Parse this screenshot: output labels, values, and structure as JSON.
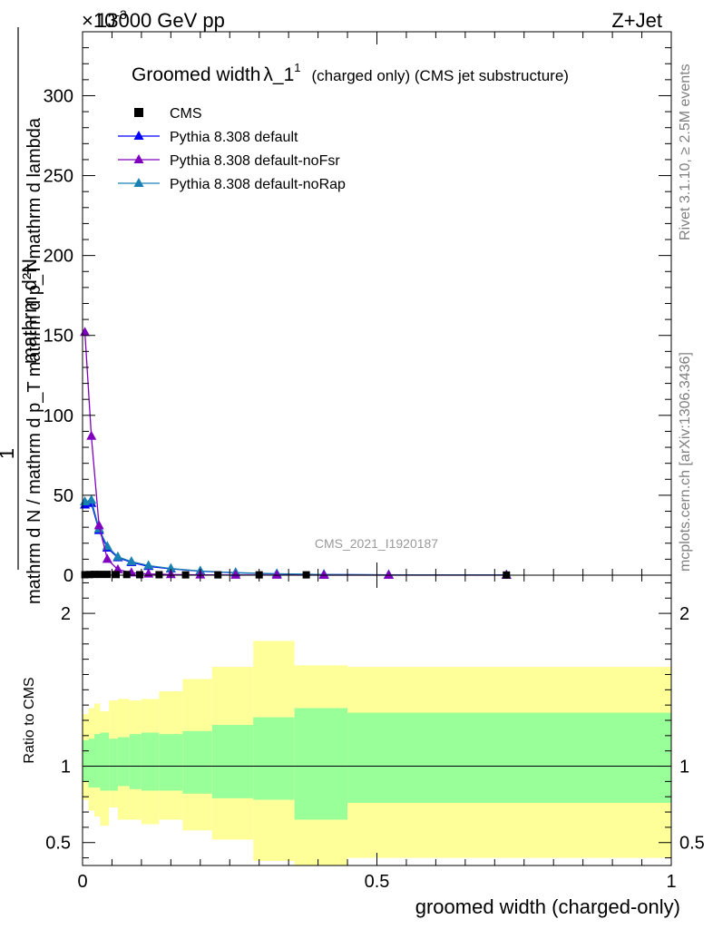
{
  "header": {
    "top_left_label": "13000 GeV pp",
    "exponent_label": "×10",
    "exponent_sup": "-3",
    "top_right_label": "Z+Jet"
  },
  "side_labels": {
    "rivet": "Rivet 3.1.10, ≥ 2.5M events",
    "mcplots": "mcplots.cern.ch [arXiv:1306.3436]"
  },
  "watermark": "CMS_2021_I1920187",
  "colors": {
    "cms": "#000000",
    "default": "#0000ff",
    "noFsr": "#8000c0",
    "noRap": "#1a80b3",
    "band_inner": "#99ff99",
    "band_outer": "#ffff99"
  },
  "chart_data": [
    {
      "type": "line",
      "title": "Groomed width λ_1^1 (charged only) (CMS jet substructure)",
      "title_main": "Groomed width",
      "title_sym": "λ_1",
      "title_sup": "1",
      "title_rest": "(charged only) (CMS jet substructure)",
      "ylabel_upper": "mathrm d²N",
      "ylabel_lower": "mathrm d N / mathrm d p_T mathrm d p_T mathrm d lambda",
      "ylabel_one": "1",
      "xlim": [
        0,
        1
      ],
      "ylim": [
        0,
        340
      ],
      "y_unit_scale": "1e-3",
      "y_ticks": [
        0,
        50,
        100,
        150,
        200,
        250,
        300
      ],
      "legend_position": "top-left",
      "series": [
        {
          "name": "CMS",
          "marker": "square",
          "x": [
            0.004,
            0.012,
            0.02,
            0.03,
            0.042,
            0.057,
            0.075,
            0.097,
            0.13,
            0.175,
            0.23,
            0.3,
            0.38,
            0.72
          ],
          "y": [
            0.3,
            0.4,
            0.5,
            0.5,
            0.5,
            0.4,
            0.4,
            0.3,
            0.3,
            0.2,
            0.2,
            0.2,
            0.2,
            0.1
          ]
        },
        {
          "name": "Pythia 8.308 default",
          "marker": "triangle",
          "x": [
            0.004,
            0.015,
            0.028,
            0.042,
            0.06,
            0.083,
            0.112,
            0.15,
            0.2,
            0.26,
            0.33,
            0.41,
            0.52,
            0.72
          ],
          "y": [
            44,
            45,
            28,
            17,
            11,
            8,
            5.5,
            4,
            2.5,
            1.5,
            0.8,
            0.4,
            0.2,
            0.1
          ]
        },
        {
          "name": "Pythia 8.308 default-noFsr",
          "marker": "triangle",
          "x": [
            0.004,
            0.015,
            0.028,
            0.042,
            0.06,
            0.083,
            0.112,
            0.15,
            0.2,
            0.26,
            0.33,
            0.41,
            0.52,
            0.72
          ],
          "y": [
            152,
            87,
            31,
            10,
            3.5,
            1.5,
            0.8,
            0.4,
            0.2,
            0.1,
            0.05,
            0.02,
            0.01,
            0.0
          ]
        },
        {
          "name": "Pythia 8.308 default-noRap",
          "marker": "triangle",
          "x": [
            0.004,
            0.015,
            0.028,
            0.042,
            0.06,
            0.083,
            0.112,
            0.15,
            0.2,
            0.26,
            0.33,
            0.41,
            0.52,
            0.72
          ],
          "y": [
            46,
            47,
            29,
            18,
            11.5,
            8.5,
            6,
            4.2,
            2.6,
            1.6,
            0.9,
            0.4,
            0.2,
            0.1
          ]
        }
      ]
    },
    {
      "type": "area",
      "ylabel": "Ratio to CMS",
      "xlabel": "groomed width (charged-only)",
      "xlim": [
        0,
        1
      ],
      "ylim": [
        0.35,
        2.25
      ],
      "x_ticks": [
        0,
        0.5,
        1
      ],
      "x_tick_labels": [
        "0",
        "0.5",
        "1"
      ],
      "y_ticks": [
        0.5,
        1,
        2
      ],
      "y_tick_labels": [
        "0.5",
        "1",
        "2"
      ],
      "reference_line": 1,
      "bin_edges": [
        0,
        0.01,
        0.02,
        0.03,
        0.045,
        0.06,
        0.08,
        0.1,
        0.13,
        0.17,
        0.22,
        0.29,
        0.36,
        0.45,
        1.0
      ],
      "stat_band": {
        "lower": [
          0.9,
          0.86,
          0.86,
          0.84,
          0.84,
          0.87,
          0.85,
          0.84,
          0.84,
          0.82,
          0.79,
          0.78,
          0.65,
          0.76
        ],
        "upper": [
          1.17,
          1.18,
          1.21,
          1.22,
          1.18,
          1.19,
          1.21,
          1.22,
          1.21,
          1.23,
          1.27,
          1.32,
          1.38,
          1.35
        ]
      },
      "total_band": {
        "lower": [
          0.78,
          0.71,
          0.67,
          0.61,
          0.73,
          0.65,
          0.65,
          0.62,
          0.65,
          0.58,
          0.52,
          0.38,
          0.31,
          0.4
        ],
        "upper": [
          1.34,
          1.38,
          1.41,
          1.36,
          1.43,
          1.44,
          1.43,
          1.44,
          1.49,
          1.57,
          1.65,
          1.82,
          1.66,
          1.65
        ]
      },
      "series": [
        {
          "name": "Pythia 8.308 default",
          "values": []
        },
        {
          "name": "Pythia 8.308 default-noFsr",
          "values": []
        },
        {
          "name": "Pythia 8.308 default-noRap",
          "values": []
        }
      ]
    }
  ]
}
